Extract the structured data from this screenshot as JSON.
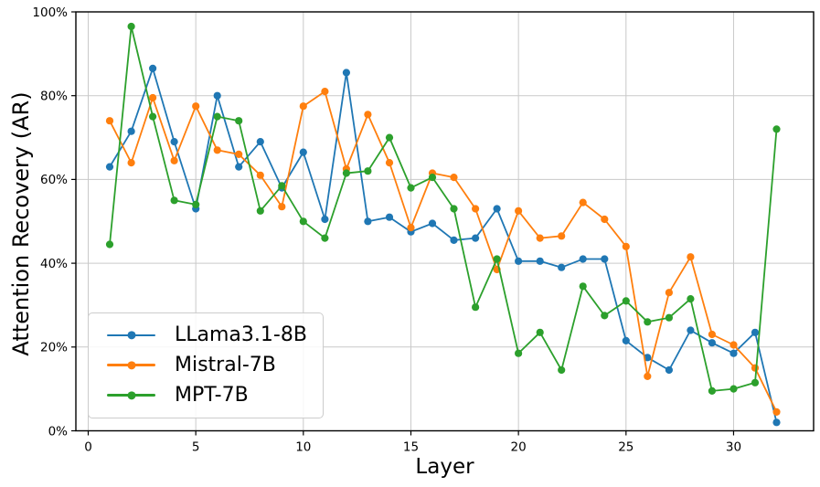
{
  "chart_data": {
    "type": "line",
    "title": "",
    "xlabel": "Layer",
    "ylabel": "Attention Recovery (AR)",
    "x": [
      1,
      2,
      3,
      4,
      5,
      6,
      7,
      8,
      9,
      10,
      11,
      12,
      13,
      14,
      15,
      16,
      17,
      18,
      19,
      20,
      21,
      22,
      23,
      24,
      25,
      26,
      27,
      28,
      29,
      30,
      31,
      32
    ],
    "xlim": [
      -0.574,
      33.72
    ],
    "ylim": [
      0,
      100
    ],
    "xticks": [
      0,
      5,
      10,
      15,
      20,
      25,
      30
    ],
    "yticks": [
      0,
      20,
      40,
      60,
      80,
      100
    ],
    "ytick_suffix": "%",
    "grid": true,
    "grid_color": "#c9c9c9",
    "spine_color": "#000000",
    "legend_position": "lower-left",
    "series": [
      {
        "name": "LLama3.1-8B",
        "color": "#1f77b4",
        "values": [
          63,
          71.5,
          86.5,
          69,
          53,
          80,
          63,
          69,
          58,
          66.5,
          50.5,
          85.5,
          50,
          51,
          47.5,
          49.5,
          45.5,
          46,
          53,
          40.5,
          40.5,
          39,
          41,
          41,
          21.5,
          17.5,
          14.5,
          24,
          21,
          18.5,
          23.5,
          2
        ]
      },
      {
        "name": "Mistral-7B",
        "color": "#ff7f0e",
        "values": [
          74,
          64,
          79.5,
          64.5,
          77.5,
          67,
          66,
          61,
          53.5,
          77.5,
          81,
          62.5,
          75.5,
          64,
          48.5,
          61.5,
          60.5,
          53,
          38.5,
          52.5,
          46,
          46.5,
          54.5,
          50.5,
          44,
          13,
          33,
          41.5,
          23,
          20.5,
          15,
          4.5
        ]
      },
      {
        "name": "MPT-7B",
        "color": "#2ca02c",
        "values": [
          44.5,
          96.5,
          75,
          55,
          54,
          75,
          74,
          52.5,
          58.5,
          50,
          46,
          61.5,
          62,
          70,
          58,
          60.5,
          53,
          29.5,
          41,
          18.5,
          23.5,
          14.5,
          34.5,
          27.5,
          31,
          26,
          27,
          31.5,
          9.5,
          10,
          11.5,
          72
        ]
      }
    ]
  }
}
